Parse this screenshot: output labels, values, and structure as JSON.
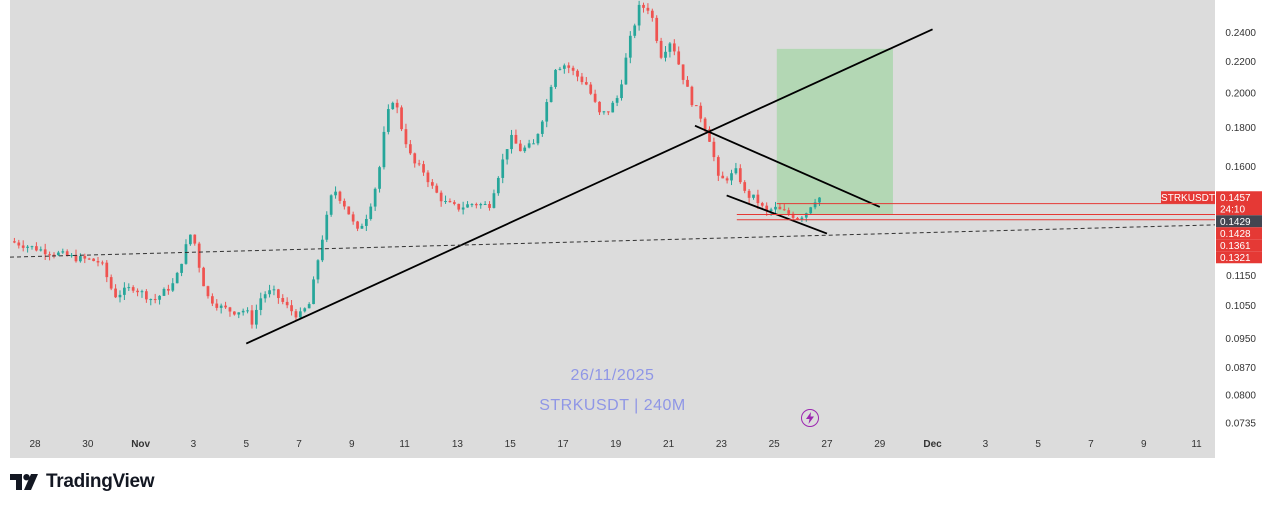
{
  "watermark": {
    "date": "26/11/2025",
    "pair": "STRKUSDT | 240M"
  },
  "brand": {
    "name": "TradingView"
  },
  "symbol": "STRKUSDT",
  "countdown": "24:10",
  "price_tags": [
    {
      "label": "0.1457",
      "price": 0.1457,
      "kind": "last"
    },
    {
      "label": "0.1429",
      "price": 0.1429,
      "kind": "dark"
    },
    {
      "label": "0.1428",
      "price": 0.1428,
      "kind": "red"
    },
    {
      "label": "0.1361",
      "price": 0.1361,
      "kind": "red"
    },
    {
      "label": "0.1321",
      "price": 0.1321,
      "kind": "red"
    }
  ],
  "colors": {
    "background": "#dcdcdc",
    "up": "#26a69a",
    "down": "#ef5350",
    "tag_red": "#e53935",
    "tag_dark": "#434651",
    "zone_green": "#a5d6a7",
    "watermark": "#8f96e6"
  },
  "icon": {
    "name": "lightning-icon"
  },
  "chart_data": {
    "type": "candlestick",
    "title": "",
    "y_axis": {
      "scale": "log",
      "ticks": [
        {
          "label": "0.2400",
          "value": 0.24
        },
        {
          "label": "0.2200",
          "value": 0.22
        },
        {
          "label": "0.2000",
          "value": 0.2
        },
        {
          "label": "0.1800",
          "value": 0.18
        },
        {
          "label": "0.1600",
          "value": 0.16
        },
        {
          "label": "0.1150",
          "value": 0.115
        },
        {
          "label": "0.1050",
          "value": 0.105
        },
        {
          "label": "0.0950",
          "value": 0.095
        },
        {
          "label": "0.0870",
          "value": 0.087
        },
        {
          "label": "0.0800",
          "value": 0.08
        },
        {
          "label": "0.0735",
          "value": 0.0735
        }
      ],
      "range": [
        0.0715,
        0.265
      ]
    },
    "x_axis": {
      "ticks": [
        {
          "label": "28",
          "day": -4
        },
        {
          "label": "30",
          "day": -2
        },
        {
          "label": "Nov",
          "day": 0
        },
        {
          "label": "3",
          "day": 2
        },
        {
          "label": "5",
          "day": 4
        },
        {
          "label": "7",
          "day": 6
        },
        {
          "label": "9",
          "day": 8
        },
        {
          "label": "11",
          "day": 10
        },
        {
          "label": "13",
          "day": 12
        },
        {
          "label": "15",
          "day": 14
        },
        {
          "label": "17",
          "day": 16
        },
        {
          "label": "19",
          "day": 18
        },
        {
          "label": "21",
          "day": 20
        },
        {
          "label": "23",
          "day": 22
        },
        {
          "label": "25",
          "day": 24
        },
        {
          "label": "27",
          "day": 26
        },
        {
          "label": "29",
          "day": 28
        },
        {
          "label": "Dec",
          "day": 30
        },
        {
          "label": "3",
          "day": 32
        },
        {
          "label": "5",
          "day": 34
        },
        {
          "label": "7",
          "day": 36
        },
        {
          "label": "9",
          "day": 38
        },
        {
          "label": "11",
          "day": 40
        }
      ],
      "range_days": [
        -4.95,
        40.7
      ]
    },
    "candle_interval": "240M",
    "close_path": [
      [
        -4.95,
        0.1275
      ],
      [
        -4.4,
        0.126
      ],
      [
        -3.7,
        0.124
      ],
      [
        -3.0,
        0.1225
      ],
      [
        -2.4,
        0.121
      ],
      [
        -1.9,
        0.1205
      ],
      [
        -1.5,
        0.1195
      ],
      [
        -1.0,
        0.108
      ],
      [
        -0.3,
        0.111
      ],
      [
        0.5,
        0.1065
      ],
      [
        0.9,
        0.1095
      ],
      [
        1.3,
        0.1125
      ],
      [
        1.7,
        0.125
      ],
      [
        1.95,
        0.132
      ],
      [
        2.2,
        0.119
      ],
      [
        2.5,
        0.108
      ],
      [
        3.0,
        0.1045
      ],
      [
        3.5,
        0.103
      ],
      [
        4.0,
        0.1035
      ],
      [
        4.2,
        0.0995
      ],
      [
        4.6,
        0.1085
      ],
      [
        5.0,
        0.1095
      ],
      [
        5.6,
        0.104
      ],
      [
        6.0,
        0.1015
      ],
      [
        6.4,
        0.1055
      ],
      [
        6.8,
        0.125
      ],
      [
        7.3,
        0.15
      ],
      [
        7.8,
        0.141
      ],
      [
        8.2,
        0.131
      ],
      [
        8.6,
        0.1385
      ],
      [
        9.0,
        0.155
      ],
      [
        9.3,
        0.185
      ],
      [
        9.6,
        0.198
      ],
      [
        9.9,
        0.179
      ],
      [
        10.3,
        0.162
      ],
      [
        10.7,
        0.158
      ],
      [
        11.1,
        0.149
      ],
      [
        11.5,
        0.1435
      ],
      [
        12.0,
        0.141
      ],
      [
        12.6,
        0.143
      ],
      [
        13.2,
        0.142
      ],
      [
        13.6,
        0.158
      ],
      [
        14.0,
        0.175
      ],
      [
        14.4,
        0.168
      ],
      [
        14.9,
        0.171
      ],
      [
        15.3,
        0.189
      ],
      [
        15.7,
        0.216
      ],
      [
        16.1,
        0.218
      ],
      [
        16.5,
        0.211
      ],
      [
        16.9,
        0.205
      ],
      [
        17.4,
        0.187
      ],
      [
        17.7,
        0.189
      ],
      [
        18.1,
        0.198
      ],
      [
        18.5,
        0.232
      ],
      [
        18.9,
        0.26
      ],
      [
        19.3,
        0.258
      ],
      [
        19.7,
        0.224
      ],
      [
        20.1,
        0.235
      ],
      [
        20.5,
        0.212
      ],
      [
        20.9,
        0.194
      ],
      [
        21.3,
        0.184
      ],
      [
        21.6,
        0.172
      ],
      [
        21.9,
        0.153
      ],
      [
        22.3,
        0.155
      ],
      [
        22.6,
        0.158
      ],
      [
        22.9,
        0.147
      ],
      [
        23.3,
        0.145
      ],
      [
        23.7,
        0.139
      ],
      [
        24.0,
        0.141
      ],
      [
        24.3,
        0.1395
      ],
      [
        24.6,
        0.1385
      ],
      [
        24.9,
        0.137
      ],
      [
        25.2,
        0.139
      ],
      [
        25.5,
        0.1445
      ],
      [
        25.75,
        0.1457
      ]
    ],
    "trendlines": [
      {
        "name": "rising-support",
        "from": [
          4.0,
          0.0935
        ],
        "to": [
          30.0,
          0.2425
        ]
      },
      {
        "name": "falling-resistance",
        "from": [
          21.0,
          0.181
        ],
        "to": [
          28.0,
          0.1415
        ]
      },
      {
        "name": "falling-support",
        "from": [
          22.2,
          0.1465
        ],
        "to": [
          26.0,
          0.1305
        ]
      }
    ],
    "dashed_lines": [
      {
        "name": "long-dashed-support",
        "from": [
          -4.95,
          0.1215
        ],
        "to": [
          40.7,
          0.134
        ]
      }
    ],
    "target_zone": {
      "from_day": 24.1,
      "to_day": 28.5,
      "low": 0.1381,
      "high": 0.2285
    },
    "horizontal_levels": [
      0.1429,
      0.1383,
      0.1361
    ]
  }
}
